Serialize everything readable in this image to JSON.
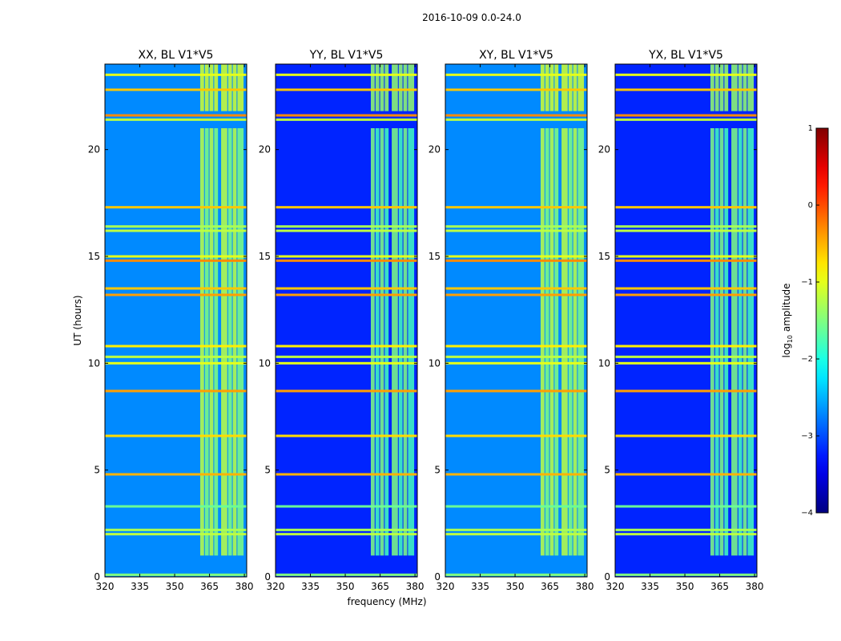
{
  "figure": {
    "suptitle": "2016-10-09 0.0-24.0"
  },
  "chart_data": {
    "type": "heatmap",
    "title": "2016-10-09 0.0-24.0",
    "xlabel": "frequency (MHz)",
    "ylabel": "UT (hours)",
    "xlim": [
      320,
      381
    ],
    "ylim": [
      0,
      24
    ],
    "x_ticks": [
      "320",
      "335",
      "350",
      "365",
      "380"
    ],
    "x_tick_values": [
      320,
      335,
      350,
      365,
      380
    ],
    "y_ticks": [
      "0",
      "5",
      "10",
      "15",
      "20"
    ],
    "y_tick_values": [
      0,
      5,
      10,
      15,
      20
    ],
    "panels": [
      {
        "title": "XX, BL V1*V5",
        "background_log10": -2.7,
        "band_log10": -1.3
      },
      {
        "title": "YY, BL V1*V5",
        "background_log10": -3.2,
        "band_log10": -1.6
      },
      {
        "title": "XY, BL V1*V5",
        "background_log10": -2.7,
        "band_log10": -1.3
      },
      {
        "title": "YX, BL V1*V5",
        "background_log10": -3.2,
        "band_log10": -1.6
      }
    ],
    "rfi_band_mhz": [
      [
        361,
        363
      ],
      [
        363,
        365
      ],
      [
        365,
        367
      ],
      [
        367,
        369
      ],
      [
        370,
        373
      ],
      [
        373,
        375
      ],
      [
        375,
        377
      ],
      [
        377,
        380
      ]
    ],
    "rfi_lines_hours": [
      {
        "t": 0.1,
        "log10": -1.5
      },
      {
        "t": 2.0,
        "log10": -1.2
      },
      {
        "t": 2.2,
        "log10": -1.3
      },
      {
        "t": 3.3,
        "log10": -1.6
      },
      {
        "t": 4.8,
        "log10": -0.5
      },
      {
        "t": 6.6,
        "log10": -0.7
      },
      {
        "t": 8.7,
        "log10": -0.4
      },
      {
        "t": 10.0,
        "log10": -1.0
      },
      {
        "t": 10.3,
        "log10": -1.2
      },
      {
        "t": 10.8,
        "log10": -0.8
      },
      {
        "t": 13.2,
        "log10": -0.4
      },
      {
        "t": 13.5,
        "log10": -0.6
      },
      {
        "t": 14.8,
        "log10": -0.3
      },
      {
        "t": 15.0,
        "log10": -1.0
      },
      {
        "t": 16.2,
        "log10": -1.2
      },
      {
        "t": 16.4,
        "log10": -1.3
      },
      {
        "t": 17.3,
        "log10": -0.6
      },
      {
        "t": 21.4,
        "log10": -1.2
      },
      {
        "t": 21.6,
        "log10": -0.3
      },
      {
        "t": 22.8,
        "log10": -0.6
      },
      {
        "t": 23.5,
        "log10": -1.0
      }
    ],
    "colorbar": {
      "label": "log10 amplitude",
      "label_base": "log",
      "label_sub": "10",
      "label_rest": " amplitude",
      "range": [
        -4,
        1
      ],
      "ticks": [
        "1",
        "0",
        "−1",
        "−2",
        "−3",
        "−4"
      ],
      "tick_values": [
        1,
        0,
        -1,
        -2,
        -3,
        -4
      ],
      "colormap": "jet"
    }
  }
}
